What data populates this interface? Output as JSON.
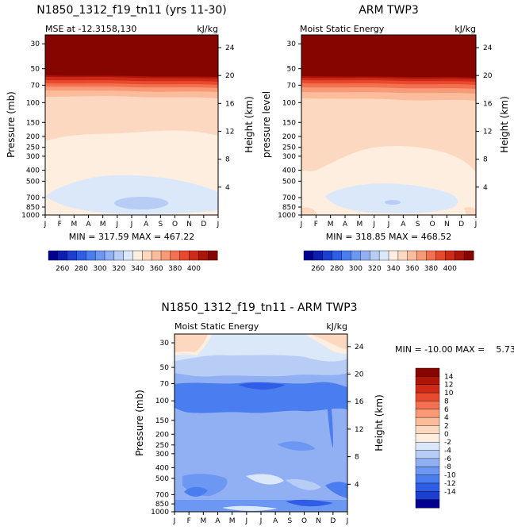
{
  "chart_data": [
    {
      "type": "contour",
      "title": "N1850_1312_f19_tn11 (yrs 11-30)",
      "subtitle_left": "MSE at -12.3158,130",
      "subtitle_right": "kJ/kg",
      "ylabel": "Pressure (mb)",
      "ylabel_right": "Height (km)",
      "x_ticks": [
        "J",
        "F",
        "M",
        "A",
        "M",
        "J",
        "J",
        "A",
        "S",
        "O",
        "N",
        "D",
        "J"
      ],
      "y_ticks": [
        "30",
        "50",
        "70",
        "100",
        "150",
        "200",
        "250",
        "300",
        "400",
        "500",
        "700",
        "850",
        "1000"
      ],
      "y_tick_values": [
        30,
        50,
        70,
        100,
        150,
        200,
        250,
        300,
        400,
        500,
        700,
        850,
        1000
      ],
      "height_ticks": [
        "24",
        "20",
        "16",
        "12",
        "8",
        "4"
      ],
      "height_tick_values": [
        24,
        20,
        16,
        12,
        8,
        4
      ],
      "ylim": [
        1000,
        25
      ],
      "stats": "MIN = 317.59 MAX = 467.22",
      "min": 317.59,
      "max": 467.22,
      "colorbar_labels": [
        "260",
        "280",
        "300",
        "320",
        "340",
        "360",
        "380",
        "400"
      ]
    },
    {
      "type": "contour",
      "title": "ARM TWP3",
      "subtitle_left": "Moist Static Energy",
      "subtitle_right": "kJ/kg",
      "ylabel": "pressure level",
      "ylabel_right": "Height (km)",
      "x_ticks": [
        "J",
        "F",
        "M",
        "A",
        "M",
        "J",
        "J",
        "A",
        "S",
        "O",
        "N",
        "D",
        "J"
      ],
      "y_ticks": [
        "30",
        "50",
        "70",
        "100",
        "150",
        "200",
        "250",
        "300",
        "400",
        "500",
        "700",
        "850",
        "1000"
      ],
      "y_tick_values": [
        30,
        50,
        70,
        100,
        150,
        200,
        250,
        300,
        400,
        500,
        700,
        850,
        1000
      ],
      "height_ticks": [
        "24",
        "20",
        "16",
        "12",
        "8",
        "4"
      ],
      "height_tick_values": [
        24,
        20,
        16,
        12,
        8,
        4
      ],
      "ylim": [
        1000,
        25
      ],
      "stats": "MIN = 318.85 MAX = 468.52",
      "min": 318.85,
      "max": 468.52,
      "colorbar_labels": [
        "260",
        "280",
        "300",
        "320",
        "340",
        "360",
        "380",
        "400"
      ]
    },
    {
      "type": "contour",
      "title": "N1850_1312_f19_tn11 - ARM TWP3",
      "subtitle_left": "Moist Static Energy",
      "subtitle_right": "kJ/kg",
      "ylabel": "Pressure (mb)",
      "ylabel_right": "Height (km)",
      "x_ticks": [
        "J",
        "F",
        "M",
        "A",
        "M",
        "J",
        "J",
        "A",
        "S",
        "O",
        "N",
        "D",
        "J"
      ],
      "y_ticks": [
        "30",
        "50",
        "70",
        "100",
        "150",
        "200",
        "250",
        "300",
        "400",
        "500",
        "700",
        "850",
        "1000"
      ],
      "y_tick_values": [
        30,
        50,
        70,
        100,
        150,
        200,
        250,
        300,
        400,
        500,
        700,
        850,
        1000
      ],
      "height_ticks": [
        "24",
        "20",
        "16",
        "12",
        "8",
        "4"
      ],
      "height_tick_values": [
        24,
        20,
        16,
        12,
        8,
        4
      ],
      "ylim": [
        1000,
        25
      ],
      "stats": "MIN = -10.00 MAX =    5.73",
      "min": -10.0,
      "max": 5.73,
      "colorbar_labels": [
        "14",
        "12",
        "10",
        "8",
        "6",
        "4",
        "2",
        "0",
        "-2",
        "-4",
        "-6",
        "-8",
        "-10",
        "-12",
        "-14"
      ]
    }
  ],
  "colors": {
    "abs_scale": [
      "#03008f",
      "#0c1fb0",
      "#1c3fd1",
      "#2f5de6",
      "#4a7df0",
      "#6c97f2",
      "#90b0f3",
      "#b7cdf6",
      "#dbe8fa",
      "#fdeedf",
      "#fdd8c0",
      "#fbbc9c",
      "#f89a75",
      "#f37150",
      "#e84a2e",
      "#cf2a17",
      "#ad1509",
      "#870500"
    ],
    "diff_scale": [
      "#870500",
      "#ad1509",
      "#cf2a17",
      "#e84a2e",
      "#f37150",
      "#f89a75",
      "#fbbc9c",
      "#fdd8c0",
      "#fdeedf",
      "#dbe8fa",
      "#b7cdf6",
      "#90b0f3",
      "#6c97f2",
      "#4a7df0",
      "#2f5de6",
      "#1c3fd1",
      "#03008f"
    ]
  }
}
